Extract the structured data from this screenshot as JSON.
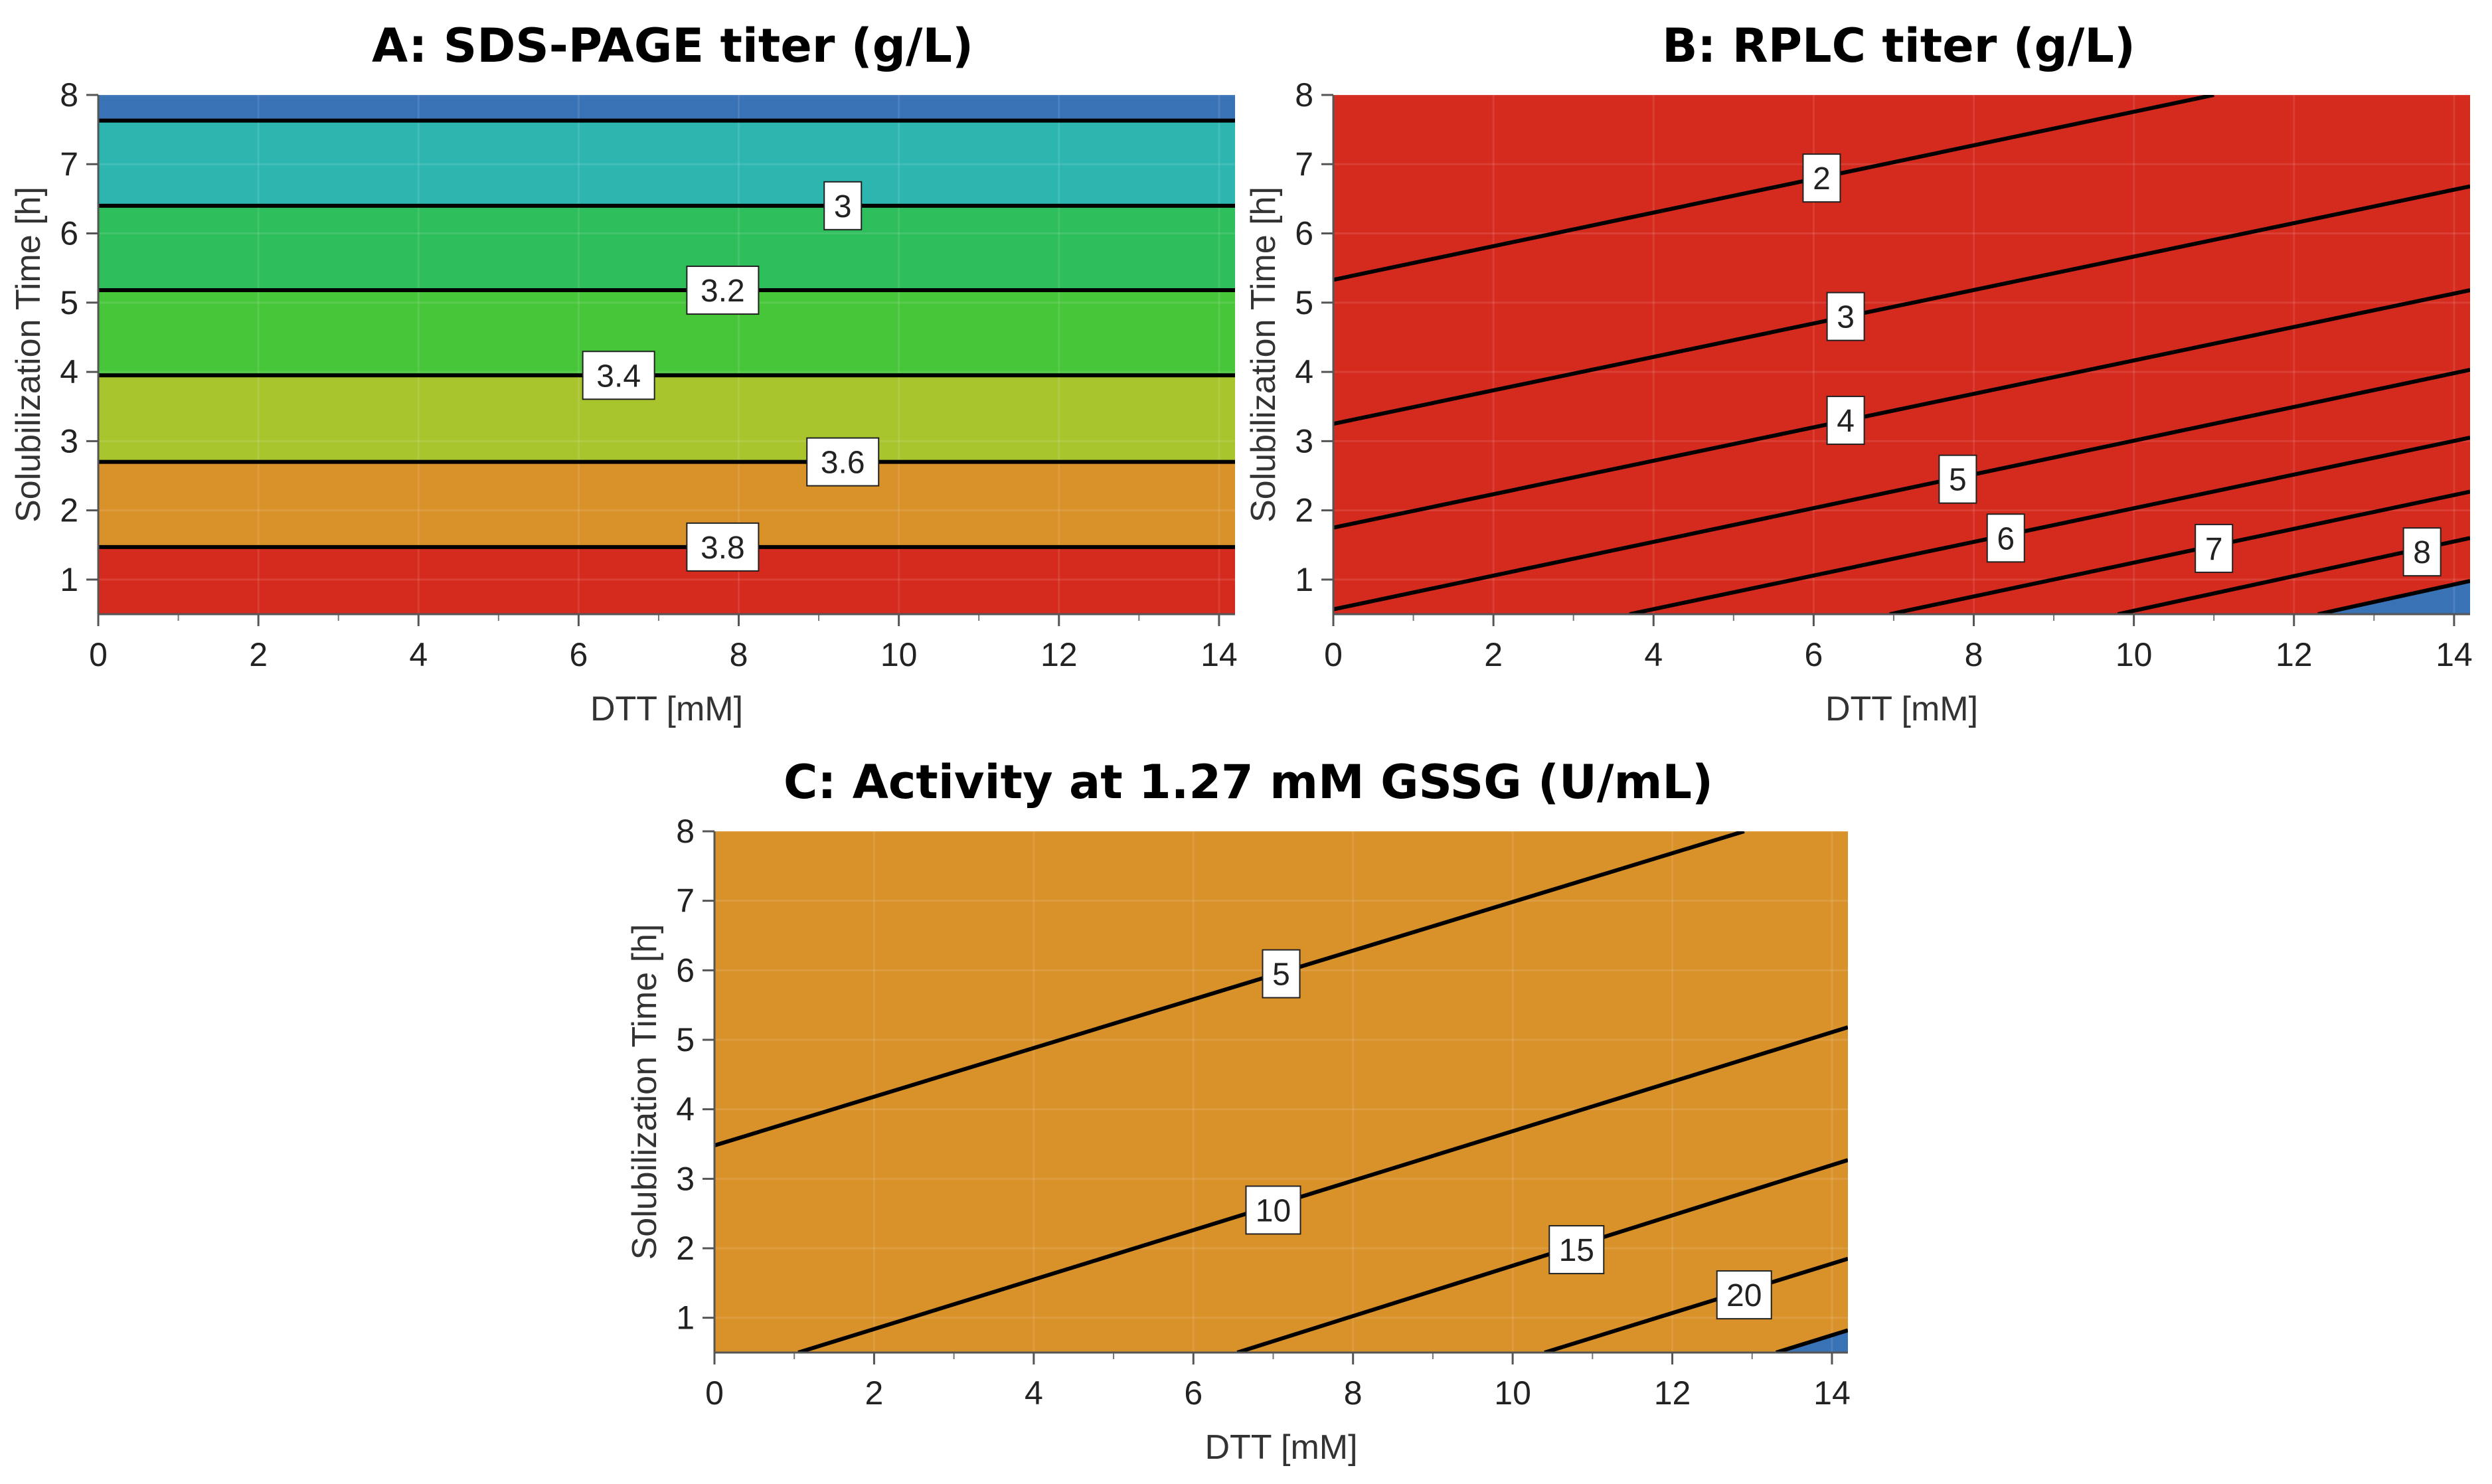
{
  "chart_data": [
    {
      "id": "panel-a",
      "type": "contour",
      "title": "A: SDS-PAGE titer (g/L)",
      "xlabel": "DTT [mM]",
      "ylabel": "Solubilization Time [h]",
      "xlim": [
        0,
        14.2
      ],
      "ylim": [
        0.5,
        8
      ],
      "xticks": [
        0,
        2,
        4,
        6,
        8,
        10,
        12,
        14
      ],
      "yticks": [
        1,
        2,
        3,
        4,
        5,
        6,
        7,
        8
      ],
      "colors": [
        "#d52a1e",
        "#d9912a",
        "#a8c52e",
        "#47c63a",
        "#2ebe5c",
        "#2db6b0",
        "#3a72b6"
      ],
      "contours": [
        {
          "label": "3.8",
          "line": [
            [
              0,
              1.47
            ],
            [
              14.2,
              1.47
            ]
          ],
          "label_pos": [
            7.8,
            1.47
          ]
        },
        {
          "label": "3.6",
          "line": [
            [
              0,
              2.7
            ],
            [
              14.2,
              2.7
            ]
          ],
          "label_pos": [
            9.3,
            2.7
          ]
        },
        {
          "label": "3.4",
          "line": [
            [
              0,
              3.95
            ],
            [
              14.2,
              3.95
            ]
          ],
          "label_pos": [
            6.5,
            3.95
          ]
        },
        {
          "label": "3.2",
          "line": [
            [
              0,
              5.18
            ],
            [
              14.2,
              5.18
            ]
          ],
          "label_pos": [
            7.8,
            5.18
          ]
        },
        {
          "label": "3",
          "line": [
            [
              0,
              6.4
            ],
            [
              14.2,
              6.4
            ]
          ],
          "label_pos": [
            9.3,
            6.4
          ]
        },
        {
          "label": "",
          "line": [
            [
              0,
              7.63
            ],
            [
              14.2,
              7.63
            ]
          ],
          "label_pos": null
        }
      ]
    },
    {
      "id": "panel-b",
      "type": "contour",
      "title": "B: RPLC titer (g/L)",
      "xlabel": "DTT [mM]",
      "ylabel": "Solubilization Time [h]",
      "xlim": [
        0,
        14.2
      ],
      "ylim": [
        0.5,
        8
      ],
      "xticks": [
        0,
        2,
        4,
        6,
        8,
        10,
        12,
        14
      ],
      "yticks": [
        1,
        2,
        3,
        4,
        5,
        6,
        7,
        8
      ],
      "colors": [
        "#3a72b6",
        "#2db6b0",
        "#2ebe5c",
        "#47c63a",
        "#a8c52e",
        "#d8c428",
        "#d9772a",
        "#d52a1e"
      ],
      "contours": [
        {
          "label": "2",
          "line": [
            [
              0,
              5.33
            ],
            [
              11.0,
              8.0
            ]
          ],
          "label_pos": [
            6.1,
            6.8
          ]
        },
        {
          "label": "3",
          "line": [
            [
              0,
              3.25
            ],
            [
              14.2,
              6.68
            ]
          ],
          "label_pos": [
            6.4,
            4.8
          ]
        },
        {
          "label": "4",
          "line": [
            [
              0,
              1.75
            ],
            [
              14.2,
              5.18
            ]
          ],
          "label_pos": [
            6.4,
            3.3
          ]
        },
        {
          "label": "5",
          "line": [
            [
              0,
              0.57
            ],
            [
              14.2,
              4.03
            ]
          ],
          "label_pos": [
            7.8,
            2.45
          ]
        },
        {
          "label": "6",
          "line": [
            [
              3.7,
              0.5
            ],
            [
              14.2,
              3.05
            ]
          ],
          "label_pos": [
            8.4,
            1.6
          ]
        },
        {
          "label": "7",
          "line": [
            [
              6.95,
              0.5
            ],
            [
              14.2,
              2.27
            ]
          ],
          "label_pos": [
            11.0,
            1.45
          ]
        },
        {
          "label": "8",
          "line": [
            [
              9.8,
              0.5
            ],
            [
              14.2,
              1.6
            ]
          ],
          "label_pos": [
            13.6,
            1.4
          ]
        },
        {
          "label": "",
          "line": [
            [
              12.3,
              0.5
            ],
            [
              14.2,
              0.98
            ]
          ],
          "label_pos": null
        }
      ]
    },
    {
      "id": "panel-c",
      "type": "contour",
      "title": "C: Activity at 1.27 mM GSSG (U/mL)",
      "xlabel": "DTT [mM]",
      "ylabel": "Solubilization Time [h]",
      "xlim": [
        0,
        14.2
      ],
      "ylim": [
        0.5,
        8
      ],
      "xticks": [
        0,
        2,
        4,
        6,
        8,
        10,
        12,
        14
      ],
      "yticks": [
        1,
        2,
        3,
        4,
        5,
        6,
        7,
        8
      ],
      "colors": [
        "#3a72b6",
        "#2db6b0",
        "#2ebe5c",
        "#47c63a",
        "#a8c52e",
        "#d9912a",
        "#d52a1e"
      ],
      "contours": [
        {
          "label": "5",
          "line": [
            [
              0,
              3.48
            ],
            [
              12.9,
              8.0
            ]
          ],
          "label_pos": [
            7.1,
            5.95
          ]
        },
        {
          "label": "10",
          "line": [
            [
              1.05,
              0.5
            ],
            [
              14.2,
              5.18
            ]
          ],
          "label_pos": [
            7.0,
            2.55
          ]
        },
        {
          "label": "15",
          "line": [
            [
              6.55,
              0.5
            ],
            [
              14.2,
              3.27
            ]
          ],
          "label_pos": [
            10.8,
            1.98
          ]
        },
        {
          "label": "20",
          "line": [
            [
              10.4,
              0.5
            ],
            [
              14.2,
              1.85
            ]
          ],
          "label_pos": [
            12.9,
            1.33
          ]
        },
        {
          "label": "",
          "line": [
            [
              13.3,
              0.5
            ],
            [
              14.2,
              0.82
            ]
          ],
          "label_pos": null
        }
      ]
    }
  ]
}
